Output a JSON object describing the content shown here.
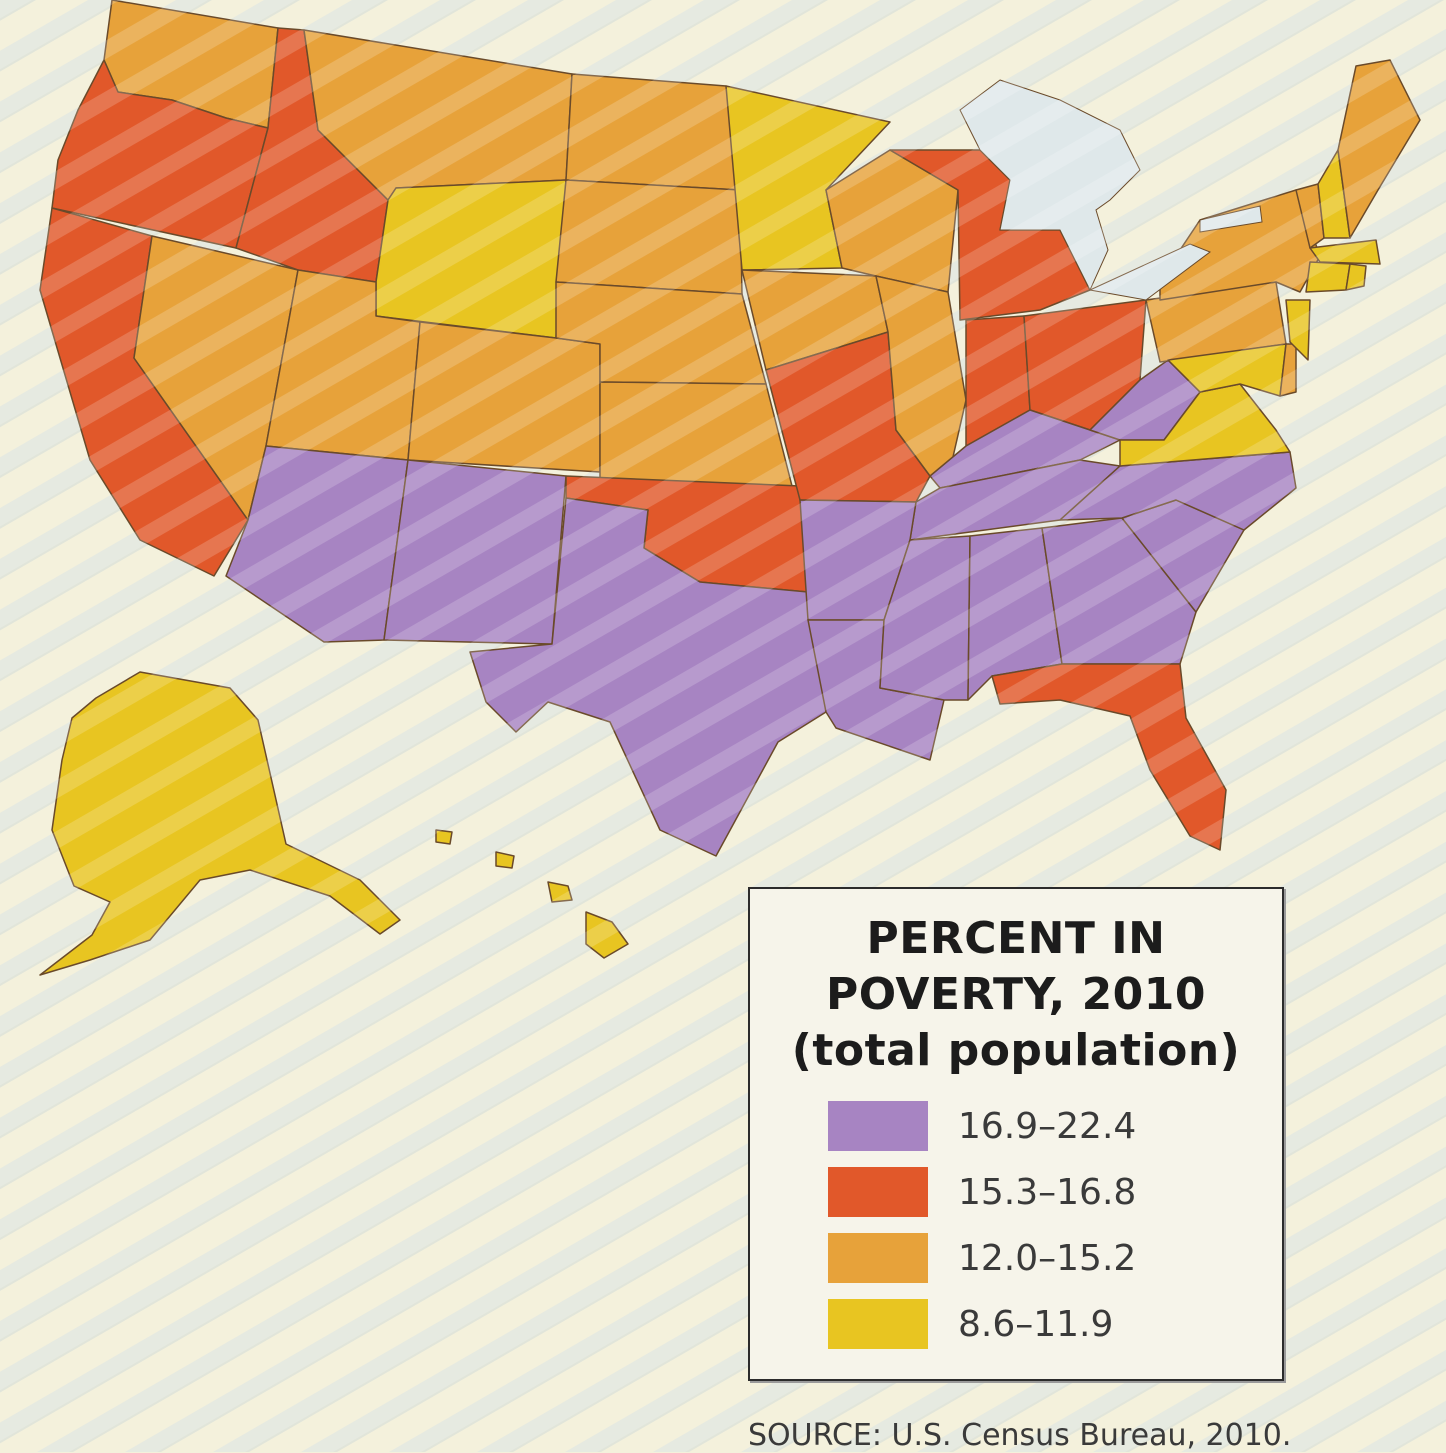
{
  "legend": {
    "title_line1": "PERCENT IN",
    "title_line2": "POVERTY, 2010",
    "title_line3": "(total population)",
    "classes": [
      {
        "label": "16.9–22.4",
        "color": "#a784c2"
      },
      {
        "label": "15.3–16.8",
        "color": "#e1582a"
      },
      {
        "label": "12.0–15.2",
        "color": "#e7a23a"
      },
      {
        "label": "8.6–11.9",
        "color": "#e8c521"
      }
    ]
  },
  "source": "SOURCE: U.S. Census Bureau, 2010."
}
